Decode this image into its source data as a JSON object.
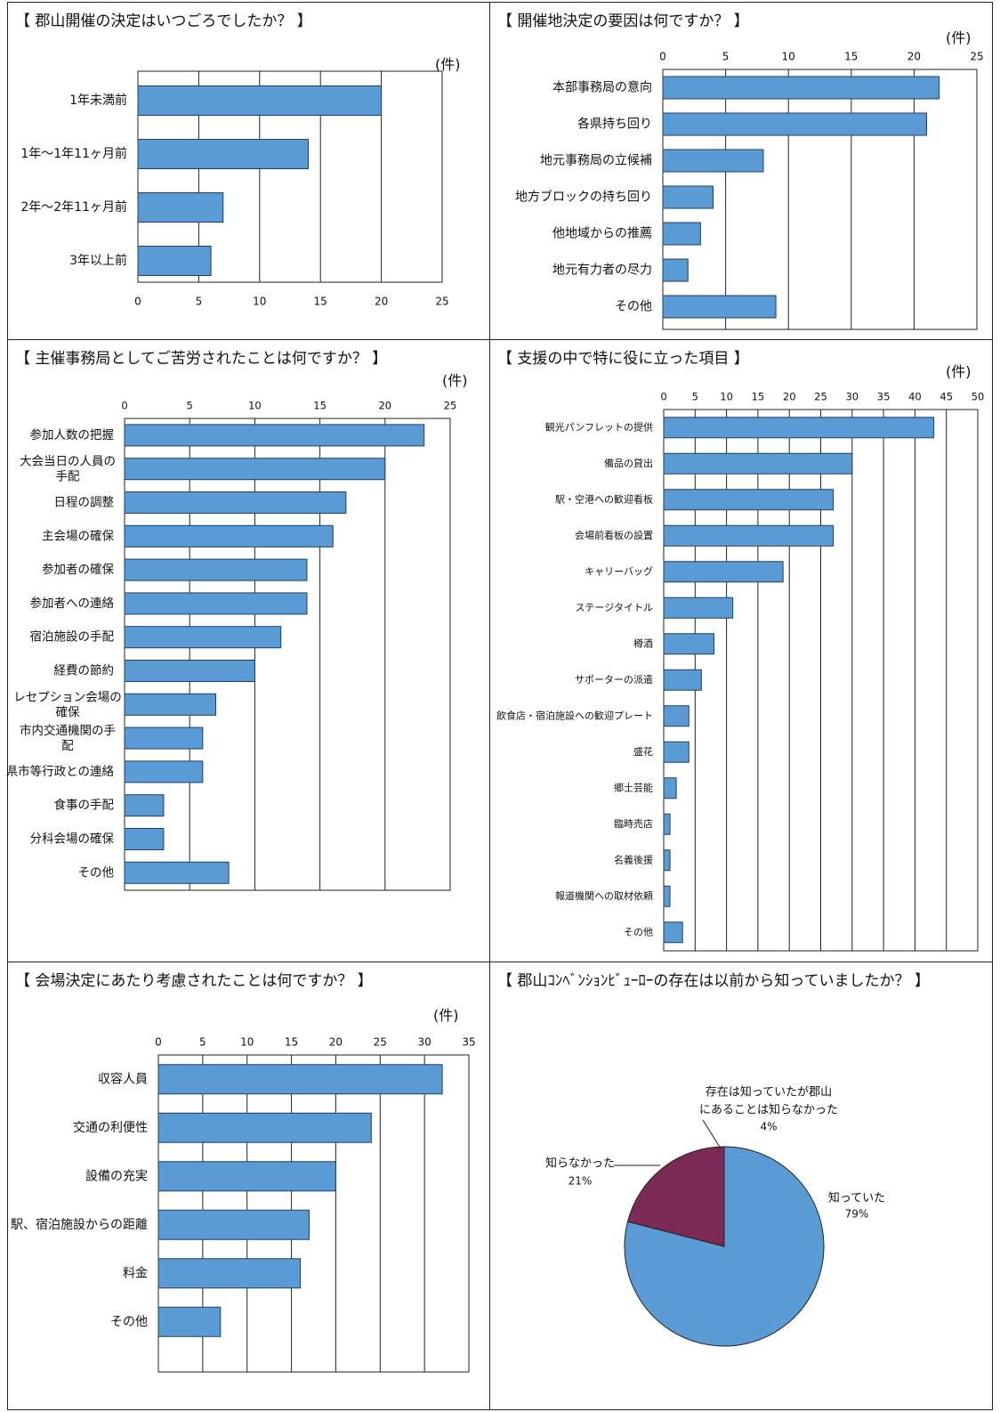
{
  "colors": {
    "bar": "#5b9bd5",
    "bar_stroke": "#1f3f66",
    "pie_main": "#5b9bd5",
    "pie_second": "#7a2a55",
    "pie_third": "#c7d6e8"
  },
  "panels": [
    {
      "title": "【 郡山開催の決定はいつごろでしたか？ 】",
      "unit": "(件)"
    },
    {
      "title": "【 開催地決定の要因は何ですか？ 】",
      "unit": "(件)"
    },
    {
      "title": "【 主催事務局としてご苦労されたことは何ですか？ 】",
      "unit": "(件)"
    },
    {
      "title": "【 支援の中で特に役に立った項目 】",
      "unit": "(件)"
    },
    {
      "title": "【 会場決定にあたり考慮されたことは何ですか？ 】",
      "unit": "(件)"
    },
    {
      "title": "【 郡山ｺﾝﾍﾞﾝｼｮﾝﾋﾞｭｰﾛｰの存在は以前から知っていましたか？ 】",
      "unit": ""
    }
  ],
  "chart_data": [
    {
      "type": "bar",
      "orientation": "horizontal",
      "axis_position": "bottom",
      "categories": [
        "1年未満前",
        "1年～1年11ヶ月前",
        "2年～2年11ヶ月前",
        "3年以上前"
      ],
      "values": [
        20,
        14,
        7,
        6
      ],
      "xlim": [
        0,
        25
      ],
      "ticks": [
        0,
        5,
        10,
        15,
        20,
        25
      ]
    },
    {
      "type": "bar",
      "orientation": "horizontal",
      "axis_position": "top",
      "categories": [
        "本部事務局の意向",
        "各県持ち回り",
        "地元事務局の立候補",
        "地方ブロックの持ち回り",
        "他地域からの推薦",
        "地元有力者の尽力",
        "その他"
      ],
      "values": [
        22,
        21,
        8,
        4,
        3,
        2,
        9
      ],
      "xlim": [
        0,
        25
      ],
      "ticks": [
        0,
        5,
        10,
        15,
        20,
        25
      ]
    },
    {
      "type": "bar",
      "orientation": "horizontal",
      "axis_position": "top",
      "categories": [
        "参加人数の把握",
        "大会当日の人員の手配",
        "日程の調整",
        "主会場の確保",
        "参加者の確保",
        "参加者への連絡",
        "宿泊施設の手配",
        "経費の節約",
        "レセプション会場の確保",
        "市内交通機関の手配",
        "県市等行政との連絡",
        "食事の手配",
        "分科会場の確保",
        "その他"
      ],
      "values": [
        23,
        20,
        17,
        16,
        14,
        14,
        12,
        10,
        7,
        6,
        6,
        3,
        3,
        8
      ],
      "xlim": [
        0,
        25
      ],
      "ticks": [
        0,
        5,
        10,
        15,
        20,
        25
      ]
    },
    {
      "type": "bar",
      "orientation": "horizontal",
      "axis_position": "top",
      "categories": [
        "観光パンフレットの提供",
        "備品の貸出",
        "駅・空港への歓迎看板",
        "会場前看板の設置",
        "キャリーバッグ",
        "ステージタイトル",
        "樽酒",
        "サポーターの派遣",
        "飲食店・宿泊施設への歓迎プレート",
        "盛花",
        "郷土芸能",
        "臨時売店",
        "名義後援",
        "報道機関への取材依頼",
        "その他"
      ],
      "values": [
        43,
        30,
        27,
        27,
        19,
        11,
        8,
        6,
        4,
        4,
        2,
        1,
        1,
        1,
        3
      ],
      "xlim": [
        0,
        50
      ],
      "ticks": [
        0,
        5,
        10,
        15,
        20,
        25,
        30,
        35,
        40,
        45,
        50
      ]
    },
    {
      "type": "bar",
      "orientation": "horizontal",
      "axis_position": "top",
      "categories": [
        "収容人員",
        "交通の利便性",
        "設備の充実",
        "駅、宿泊施設からの距離",
        "料金",
        "その他"
      ],
      "values": [
        32,
        24,
        20,
        17,
        16,
        7
      ],
      "xlim": [
        0,
        35
      ],
      "ticks": [
        0,
        5,
        10,
        15,
        20,
        25,
        30,
        35
      ]
    },
    {
      "type": "pie",
      "slices": [
        {
          "label": "知っていた",
          "pct_label": "79%",
          "value": 79
        },
        {
          "label": "知らなかった",
          "pct_label": "21%",
          "value": 21
        },
        {
          "label_lines": [
            "存在は知っていたが郡山",
            "にあることは知らなかった"
          ],
          "pct_label": "4%",
          "value": 4
        }
      ]
    }
  ]
}
